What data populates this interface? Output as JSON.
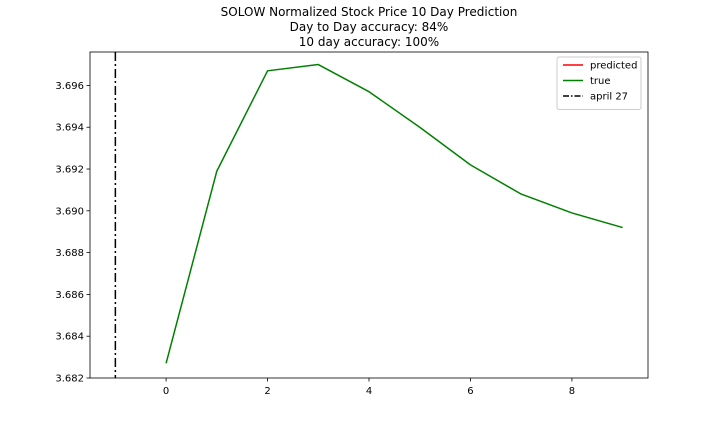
{
  "chart_data": {
    "type": "line",
    "title_lines": [
      "SOLOW Normalized Stock Price 10 Day Prediction",
      "Day to Day accuracy: 84%",
      "10 day accuracy: 100%"
    ],
    "xlabel": "",
    "ylabel": "",
    "xlim": [
      -1.5,
      9.5
    ],
    "ylim": [
      3.682,
      3.6976
    ],
    "x_ticks": [
      0,
      2,
      4,
      6,
      8
    ],
    "y_ticks": [
      3.682,
      3.684,
      3.686,
      3.688,
      3.69,
      3.692,
      3.694,
      3.696
    ],
    "y_tick_labels": [
      "3.682",
      "3.684",
      "3.686",
      "3.688",
      "3.690",
      "3.692",
      "3.694",
      "3.696"
    ],
    "grid": false,
    "legend_position": "top-right",
    "series": [
      {
        "name": "predicted",
        "color": "#ff0000",
        "x": [],
        "values": []
      },
      {
        "name": "true",
        "color": "#008000",
        "x": [
          0,
          1,
          2,
          3,
          4,
          5,
          6,
          7,
          8,
          9
        ],
        "values": [
          3.6827,
          3.6919,
          3.6967,
          3.697,
          3.6957,
          3.694,
          3.6922,
          3.6908,
          3.6899,
          3.6892
        ]
      }
    ],
    "vline": {
      "name": "april 27",
      "x": -1,
      "color": "#000000",
      "style": "dashdot"
    }
  }
}
